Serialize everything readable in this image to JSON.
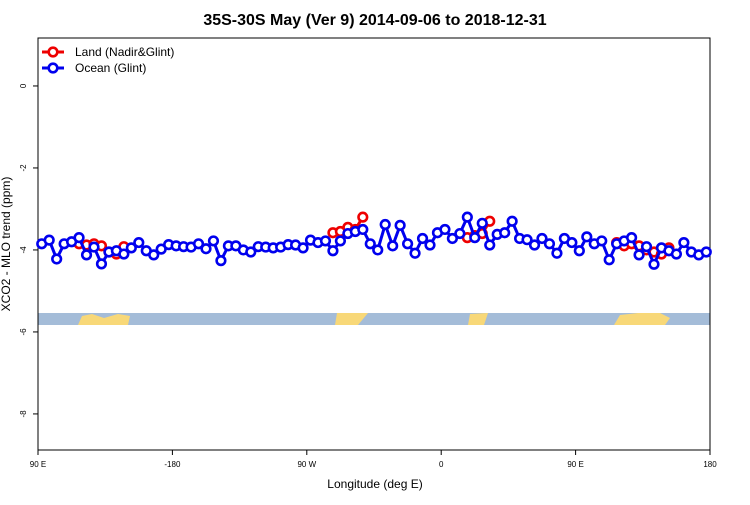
{
  "chart_data": {
    "type": "line",
    "title": "35S-30S May (Ver 9)   2014-09-06 to 2018-12-31",
    "x_label": "Longitude (deg E)",
    "y_label": "XCO2 - MLO trend (ppm)",
    "xlim": [
      -270,
      180
    ],
    "ylim": [
      -8.88,
      1.17
    ],
    "xticks": [
      {
        "value": -270,
        "label": "90 E"
      },
      -180,
      {
        "value": -90,
        "label": "90 W"
      },
      0,
      {
        "value": 90,
        "label": "90 E"
      },
      180
    ],
    "yticks": [
      0,
      -2,
      -4,
      -6,
      -8
    ],
    "legend": "top-left",
    "series": [
      {
        "name": "Land (Nadir&Glint)",
        "color": "#ee0000",
        "x": [
          -242.5,
          -237.5,
          -232.5,
          -227.5,
          -222.5,
          -217.5,
          -212.5,
          -207.5,
          -72.5,
          -67.5,
          -62.5,
          -57.5,
          -52.5,
          -47.5,
          17.5,
          22.5,
          27.5,
          32.5,
          37.5,
          117.5,
          122.5,
          127.5,
          132.5,
          137.5,
          142.5,
          147.5,
          152.5
        ],
        "values": [
          -3.85,
          -3.88,
          -3.85,
          -3.9,
          -4.05,
          -4.1,
          -3.92,
          null,
          -3.58,
          -3.55,
          -3.45,
          -3.5,
          -3.2,
          null,
          -3.7,
          -3.65,
          -3.6,
          -3.3,
          null,
          -3.82,
          -3.9,
          -3.85,
          -3.9,
          -4.0,
          -4.05,
          -4.1,
          -3.95
        ]
      },
      {
        "name": "Ocean (Glint)",
        "color": "#0000ee",
        "x": [
          -267.5,
          -262.5,
          -257.5,
          -252.5,
          -247.5,
          -242.5,
          -237.5,
          -232.5,
          -227.5,
          -222.5,
          -217.5,
          -212.5,
          -207.5,
          -202.5,
          -197.5,
          -192.5,
          -187.5,
          -182.5,
          -177.5,
          -172.5,
          -167.5,
          -162.5,
          -157.5,
          -152.5,
          -147.5,
          -142.5,
          -137.5,
          -132.5,
          -127.5,
          -122.5,
          -117.5,
          -112.5,
          -107.5,
          -102.5,
          -97.5,
          -92.5,
          -87.5,
          -82.5,
          -77.5,
          -72.5,
          -67.5,
          -62.5,
          -57.5,
          -52.5,
          -47.5,
          -42.5,
          -37.5,
          -32.5,
          -27.5,
          -22.5,
          -17.5,
          -12.5,
          -7.5,
          -2.5,
          2.5,
          7.5,
          12.5,
          17.5,
          22.5,
          27.5,
          32.5,
          37.5,
          42.5,
          47.5,
          52.5,
          57.5,
          62.5,
          67.5,
          72.5,
          77.5,
          82.5,
          87.5,
          92.5,
          97.5,
          102.5,
          107.5,
          112.5,
          117.5,
          122.5,
          127.5,
          132.5,
          137.5,
          142.5,
          147.5,
          152.5,
          157.5,
          162.5,
          167.5,
          172.5,
          177.5
        ],
        "values": [
          -3.85,
          -3.76,
          -4.22,
          -3.85,
          -3.8,
          -3.7,
          -4.12,
          -3.93,
          -4.34,
          -4.05,
          -4.02,
          -4.1,
          -3.95,
          -3.82,
          -4.02,
          -4.12,
          -3.98,
          -3.87,
          -3.9,
          -3.92,
          -3.93,
          -3.85,
          -3.97,
          -3.78,
          -4.26,
          -3.9,
          -3.9,
          -4.0,
          -4.05,
          -3.92,
          -3.93,
          -3.95,
          -3.93,
          -3.87,
          -3.88,
          -3.95,
          -3.76,
          -3.82,
          -3.78,
          -4.02,
          -3.78,
          -3.6,
          -3.55,
          -3.5,
          -3.85,
          -4.0,
          -3.38,
          -3.9,
          -3.4,
          -3.85,
          -4.08,
          -3.72,
          -3.88,
          -3.58,
          -3.5,
          -3.72,
          -3.6,
          -3.2,
          -3.7,
          -3.35,
          -3.88,
          -3.62,
          -3.58,
          -3.3,
          -3.72,
          -3.75,
          -3.88,
          -3.72,
          -3.85,
          -4.08,
          -3.72,
          -3.82,
          -4.02,
          -3.68,
          -3.85,
          -3.78,
          -4.24,
          -3.85,
          -3.78,
          -3.7,
          -4.12,
          -3.92,
          -4.35,
          -3.95,
          -4.02,
          -4.1,
          -3.82,
          -4.05,
          -4.12,
          -4.05
        ]
      }
    ]
  }
}
